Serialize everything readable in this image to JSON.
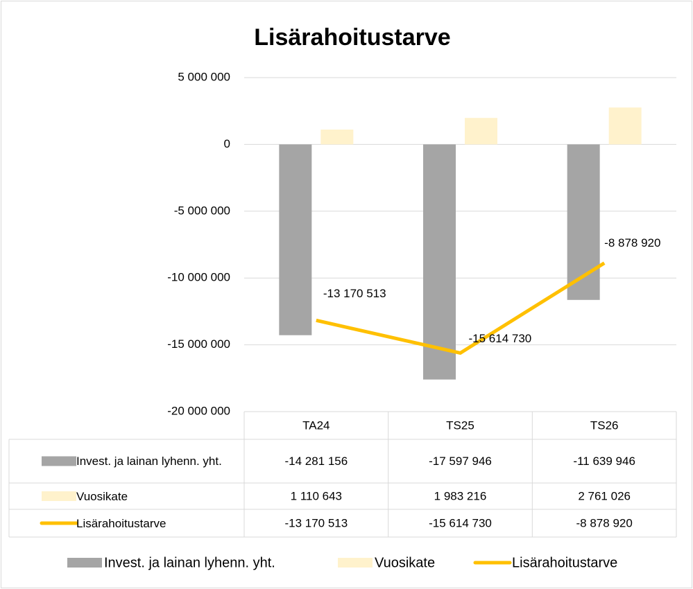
{
  "chart_data": {
    "type": "bar",
    "title": "Lisärahoitustarve",
    "categories": [
      "TA24",
      "TS25",
      "TS26"
    ],
    "series": [
      {
        "name": "Invest. ja lainan lyhenn. yht.",
        "color": "#a5a5a5",
        "values": [
          -14281156,
          -17597946,
          -11639946
        ],
        "value_labels": [
          "-14 281 156",
          "-17 597 946",
          "-11 639 946"
        ]
      },
      {
        "name": "Vuosikate",
        "color": "#fff2cc",
        "values": [
          1110643,
          1983216,
          2761026
        ],
        "value_labels": [
          "1 110 643",
          "1 983 216",
          "2 761 026"
        ]
      },
      {
        "name": "Lisärahoitustarve",
        "type": "line",
        "color": "#ffc000",
        "values": [
          -13170513,
          -15614730,
          -8878920
        ],
        "value_labels": [
          "-13 170 513",
          "-15 614 730",
          "-8 878 920"
        ]
      }
    ],
    "ylim": [
      -20000000,
      5000000
    ],
    "yticks": [
      {
        "value": -20000000,
        "label": "-20 000 000"
      },
      {
        "value": -15000000,
        "label": "-15 000 000"
      },
      {
        "value": -10000000,
        "label": "-10 000 000"
      },
      {
        "value": -5000000,
        "label": "-5 000 000"
      },
      0,
      {
        "value": 5000000,
        "label": "5 000 000"
      }
    ],
    "grid": true,
    "legend": "bottom",
    "data_table": true
  }
}
